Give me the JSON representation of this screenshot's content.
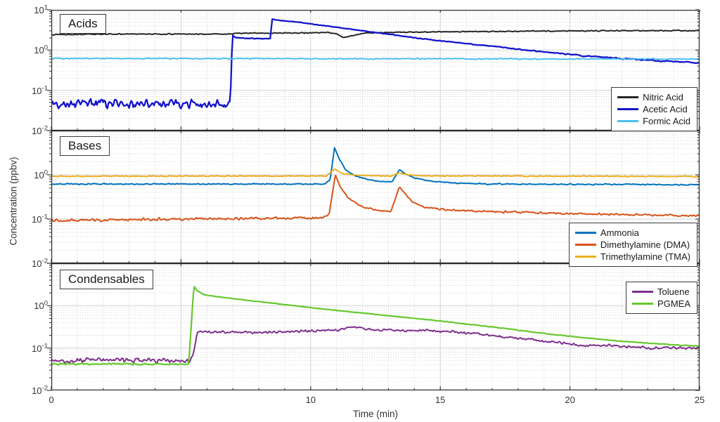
{
  "figure": {
    "xlabel": "Time (min)",
    "ylabel": "Concentration (ppbv)"
  },
  "chart_data": {
    "type": "line",
    "xlabel": "Time (min)",
    "ylabel": "Concentration (ppbv)",
    "x_range": [
      0,
      25
    ],
    "x_ticks": [
      {
        "value": 0,
        "label": "0"
      },
      {
        "value": 5,
        "label": ""
      },
      {
        "value": 10,
        "label": "10"
      },
      {
        "value": 15,
        "label": "15"
      },
      {
        "value": 20,
        "label": "20"
      },
      {
        "value": 25,
        "label": "25"
      }
    ],
    "y_scale": "log",
    "y_range": [
      0.01,
      10
    ],
    "grid": {
      "major": true,
      "minor_dotted": true
    },
    "colors": {
      "axis": "#2b2b2b",
      "grid_major": "#d2d2d2",
      "grid_minor": "#cccccc",
      "tick_text": "#333333"
    },
    "panels": [
      {
        "id": "acids",
        "title": "Acids",
        "y_tick_exponents": [
          1,
          0,
          -1,
          -2
        ],
        "legend_position": "southeast",
        "series": [
          {
            "name": "Nitric Acid",
            "color": "#262626",
            "width": 2,
            "keypoints": [
              [
                0,
                2.45,
                0.012
              ],
              [
                3,
                2.5,
                0.012
              ],
              [
                6,
                2.5,
                0.012
              ],
              [
                6.9,
                2.5,
                0.01
              ],
              [
                7.1,
                2.62,
                0.01
              ],
              [
                9,
                2.65,
                0.012
              ],
              [
                10.7,
                2.72,
                0.012
              ],
              [
                11.0,
                2.55,
                0.005
              ],
              [
                11.25,
                2.05,
                0.005
              ],
              [
                11.55,
                2.25,
                0.005
              ],
              [
                12.1,
                2.65,
                0.01
              ],
              [
                14,
                2.8,
                0.012
              ],
              [
                17,
                2.9,
                0.012
              ],
              [
                20,
                3.0,
                0.012
              ],
              [
                23,
                3.05,
                0.012
              ],
              [
                25,
                3.05,
                0.012
              ]
            ]
          },
          {
            "name": "Acetic Acid",
            "color": "#1414cc",
            "width": 2.3,
            "keypoints": [
              [
                0,
                0.045,
                0.11
              ],
              [
                6.9,
                0.046,
                0.11
              ],
              [
                6.98,
                2.3,
                0.012
              ],
              [
                7.12,
                2.05,
                0.01
              ],
              [
                7.6,
                1.97,
                0.01
              ],
              [
                8.3,
                1.9,
                0.01
              ],
              [
                8.44,
                1.95,
                0.008
              ],
              [
                8.52,
                5.9,
                0.006
              ],
              [
                8.8,
                5.5,
                0.006
              ],
              [
                9.5,
                4.95,
                0.006
              ],
              [
                10.5,
                4.05,
                0.006
              ],
              [
                11.5,
                3.35,
                0.007
              ],
              [
                12.5,
                2.75,
                0.007
              ],
              [
                13.5,
                2.25,
                0.008
              ],
              [
                14.5,
                1.85,
                0.01
              ],
              [
                16,
                1.45,
                0.01
              ],
              [
                17.5,
                1.15,
                0.012
              ],
              [
                19,
                0.9,
                0.012
              ],
              [
                20.5,
                0.72,
                0.015
              ],
              [
                22,
                0.62,
                0.015
              ],
              [
                23.5,
                0.54,
                0.015
              ],
              [
                25,
                0.48,
                0.015
              ]
            ]
          },
          {
            "name": "Formic Acid",
            "color": "#4dbeee",
            "width": 2,
            "keypoints": [
              [
                0,
                0.62,
                0.014
              ],
              [
                12,
                0.61,
                0.014
              ],
              [
                25,
                0.6,
                0.014
              ]
            ]
          }
        ]
      },
      {
        "id": "bases",
        "title": "Bases",
        "y_tick_exponents": [
          0,
          -1,
          -2
        ],
        "legend_position": "southeast",
        "series": [
          {
            "name": "Ammonia",
            "color": "#0072bd",
            "width": 2,
            "keypoints": [
              [
                0,
                0.62,
                0.013
              ],
              [
                10.55,
                0.62,
                0.013
              ],
              [
                10.75,
                0.78,
                0.008
              ],
              [
                10.92,
                4.1,
                0.004
              ],
              [
                11.1,
                2.3,
                0.004
              ],
              [
                11.35,
                1.3,
                0.006
              ],
              [
                11.7,
                0.95,
                0.008
              ],
              [
                12.2,
                0.78,
                0.008
              ],
              [
                12.8,
                0.7,
                0.009
              ],
              [
                13.15,
                0.7,
                0.007
              ],
              [
                13.42,
                1.32,
                0.004
              ],
              [
                13.65,
                1.05,
                0.006
              ],
              [
                14.0,
                0.85,
                0.008
              ],
              [
                14.6,
                0.72,
                0.01
              ],
              [
                15.5,
                0.65,
                0.012
              ],
              [
                17,
                0.62,
                0.013
              ],
              [
                21,
                0.61,
                0.013
              ],
              [
                25,
                0.6,
                0.013
              ]
            ]
          },
          {
            "name": "Dimethylamine (DMA)",
            "color": "#d95319",
            "width": 2,
            "keypoints": [
              [
                0,
                0.093,
                0.032
              ],
              [
                4,
                0.098,
                0.032
              ],
              [
                8,
                0.104,
                0.03
              ],
              [
                10.5,
                0.106,
                0.028
              ],
              [
                10.72,
                0.135,
                0.015
              ],
              [
                10.95,
                1.0,
                0.004
              ],
              [
                11.15,
                0.52,
                0.008
              ],
              [
                11.45,
                0.3,
                0.012
              ],
              [
                11.9,
                0.2,
                0.015
              ],
              [
                12.5,
                0.16,
                0.018
              ],
              [
                13.1,
                0.148,
                0.012
              ],
              [
                13.42,
                0.54,
                0.006
              ],
              [
                13.6,
                0.4,
                0.008
              ],
              [
                13.9,
                0.25,
                0.012
              ],
              [
                14.4,
                0.185,
                0.018
              ],
              [
                15.2,
                0.162,
                0.02
              ],
              [
                16.5,
                0.15,
                0.024
              ],
              [
                18,
                0.143,
                0.024
              ],
              [
                20,
                0.133,
                0.024
              ],
              [
                22,
                0.127,
                0.024
              ],
              [
                25,
                0.118,
                0.024
              ]
            ]
          },
          {
            "name": "Trimethylamine (TMA)",
            "color": "#edb120",
            "width": 2,
            "keypoints": [
              [
                0,
                0.93,
                0.012
              ],
              [
                10.6,
                0.94,
                0.012
              ],
              [
                10.92,
                1.35,
                0.005
              ],
              [
                11.25,
                1.05,
                0.008
              ],
              [
                11.8,
                0.97,
                0.011
              ],
              [
                13.1,
                0.94,
                0.01
              ],
              [
                13.42,
                1.12,
                0.006
              ],
              [
                13.75,
                1.0,
                0.008
              ],
              [
                14.4,
                0.95,
                0.011
              ],
              [
                20,
                0.93,
                0.012
              ],
              [
                25,
                0.92,
                0.012
              ]
            ]
          }
        ]
      },
      {
        "id": "condensables",
        "title": "Condensables",
        "y_tick_exponents": [
          0,
          -1,
          -2
        ],
        "legend_position": "northeast",
        "series": [
          {
            "name": "Toluene",
            "color": "#7e2f8e",
            "width": 2,
            "keypoints": [
              [
                0,
                0.05,
                0.05
              ],
              [
                2,
                0.053,
                0.05
              ],
              [
                3.5,
                0.05,
                0.05
              ],
              [
                5.35,
                0.05,
                0.04
              ],
              [
                5.5,
                0.08,
                0.02
              ],
              [
                5.62,
                0.24,
                0.03
              ],
              [
                6.5,
                0.24,
                0.032
              ],
              [
                8,
                0.23,
                0.032
              ],
              [
                9.5,
                0.25,
                0.032
              ],
              [
                11,
                0.26,
                0.03
              ],
              [
                11.6,
                0.32,
                0.022
              ],
              [
                12.3,
                0.27,
                0.028
              ],
              [
                13.5,
                0.26,
                0.028
              ],
              [
                14.5,
                0.26,
                0.028
              ],
              [
                15.5,
                0.24,
                0.028
              ],
              [
                16.5,
                0.21,
                0.028
              ],
              [
                17.5,
                0.18,
                0.028
              ],
              [
                18.5,
                0.16,
                0.028
              ],
              [
                19.5,
                0.135,
                0.028
              ],
              [
                20.5,
                0.115,
                0.03
              ],
              [
                21.5,
                0.115,
                0.032
              ],
              [
                22.5,
                0.105,
                0.032
              ],
              [
                23.5,
                0.1,
                0.032
              ],
              [
                25,
                0.1,
                0.032
              ]
            ]
          },
          {
            "name": "PGMEA",
            "color": "#66c82e",
            "width": 2.2,
            "keypoints": [
              [
                0,
                0.042,
                0.02
              ],
              [
                5.3,
                0.042,
                0.02
              ],
              [
                5.42,
                0.6,
                0.004
              ],
              [
                5.5,
                2.9,
                0.004
              ],
              [
                5.62,
                2.25,
                0.004
              ],
              [
                5.9,
                1.8,
                0.005
              ],
              [
                6.5,
                1.6,
                0.005
              ],
              [
                7.5,
                1.35,
                0.005
              ],
              [
                8.5,
                1.15,
                0.005
              ],
              [
                10,
                0.9,
                0.005
              ],
              [
                11.5,
                0.72,
                0.006
              ],
              [
                13,
                0.58,
                0.006
              ],
              [
                14.5,
                0.47,
                0.007
              ],
              [
                16,
                0.37,
                0.007
              ],
              [
                17.5,
                0.29,
                0.007
              ],
              [
                19,
                0.22,
                0.008
              ],
              [
                20.5,
                0.175,
                0.008
              ],
              [
                22,
                0.145,
                0.009
              ],
              [
                23.5,
                0.125,
                0.009
              ],
              [
                25,
                0.11,
                0.009
              ]
            ]
          }
        ]
      }
    ]
  }
}
